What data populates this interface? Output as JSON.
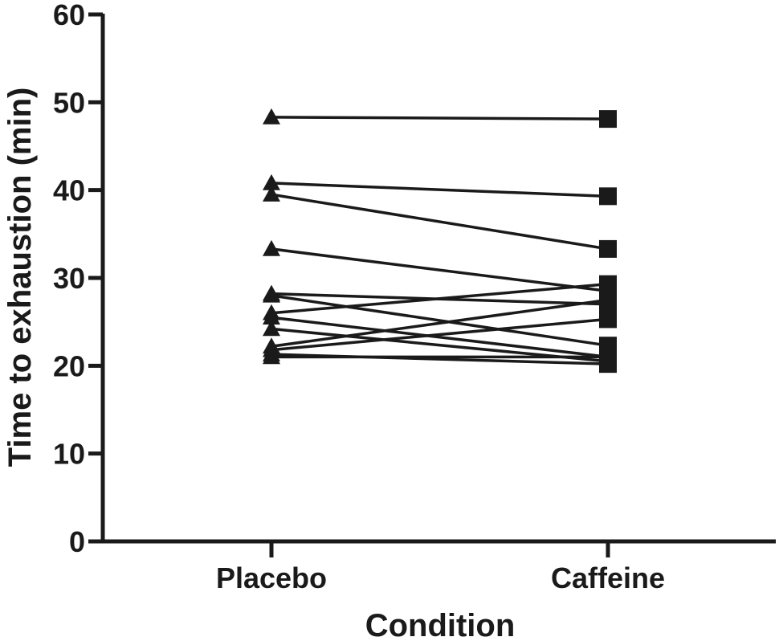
{
  "chart_data": {
    "type": "line",
    "xlabel": "Condition",
    "ylabel": "Time to exhaustion (min)",
    "categories": [
      "Placebo",
      "Caffeine"
    ],
    "ylim": [
      0,
      60
    ],
    "yticks": [
      "0",
      "10",
      "20",
      "30",
      "40",
      "50",
      "60"
    ],
    "grid": false,
    "markers": {
      "Placebo": "triangle",
      "Caffeine": "square"
    },
    "color": "#1a1a1a",
    "pairs": [
      [
        48.3,
        48.1
      ],
      [
        40.8,
        39.3
      ],
      [
        39.5,
        33.3
      ],
      [
        33.3,
        28.5
      ],
      [
        28.2,
        27.0
      ],
      [
        28.0,
        22.3
      ],
      [
        26.0,
        29.3
      ],
      [
        25.5,
        21.0
      ],
      [
        24.2,
        20.5
      ],
      [
        22.2,
        27.5
      ],
      [
        21.8,
        25.3
      ],
      [
        21.3,
        20.2
      ],
      [
        21.0,
        21.0
      ]
    ]
  }
}
